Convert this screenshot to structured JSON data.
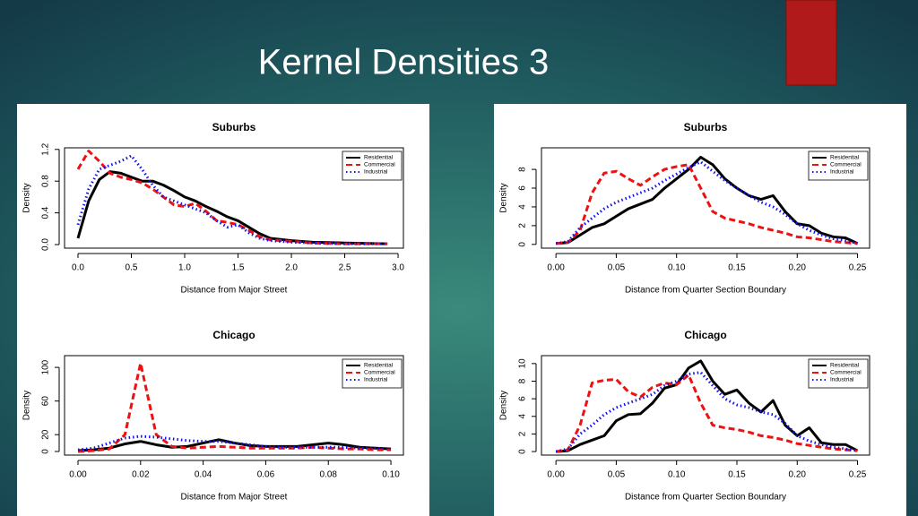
{
  "title": "Kernel Densities 3",
  "chart_data": [
    {
      "type": "line",
      "title": "Suburbs",
      "xlabel": "Distance from Major Street",
      "ylabel": "Density",
      "legend": "top-right",
      "x": [
        0,
        0.1,
        0.2,
        0.3,
        0.4,
        0.5,
        0.6,
        0.7,
        0.8,
        0.9,
        1.0,
        1.1,
        1.2,
        1.3,
        1.4,
        1.5,
        1.6,
        1.7,
        1.8,
        2.0,
        2.2,
        2.5,
        2.9
      ],
      "series": [
        {
          "name": "Residential",
          "color": "#000000",
          "dash": "solid",
          "values": [
            0.08,
            0.55,
            0.82,
            0.92,
            0.9,
            0.85,
            0.8,
            0.8,
            0.75,
            0.68,
            0.6,
            0.55,
            0.48,
            0.42,
            0.35,
            0.3,
            0.22,
            0.14,
            0.08,
            0.05,
            0.03,
            0.02,
            0.01
          ]
        },
        {
          "name": "Commercial",
          "color": "#ee1111",
          "dash": "dashed",
          "values": [
            0.95,
            1.18,
            1.05,
            0.9,
            0.85,
            0.82,
            0.78,
            0.7,
            0.6,
            0.5,
            0.48,
            0.52,
            0.42,
            0.3,
            0.28,
            0.25,
            0.18,
            0.1,
            0.06,
            0.04,
            0.02,
            0.01,
            0.01
          ]
        },
        {
          "name": "Industrial",
          "color": "#1111ee",
          "dash": "dotted",
          "values": [
            0.25,
            0.7,
            0.95,
            1.0,
            1.05,
            1.12,
            0.95,
            0.75,
            0.6,
            0.55,
            0.5,
            0.45,
            0.4,
            0.3,
            0.22,
            0.25,
            0.15,
            0.08,
            0.05,
            0.03,
            0.02,
            0.01,
            0.01
          ]
        }
      ],
      "xlim": [
        -0.126,
        3.05
      ],
      "ylim": [
        -0.045,
        1.22
      ],
      "xticks": [
        {
          "value": 0,
          "label": "0.0"
        },
        {
          "value": 0.5,
          "label": "0.5"
        },
        {
          "value": 1,
          "label": "1.0"
        },
        {
          "value": 1.5,
          "label": "1.5"
        },
        {
          "value": 2,
          "label": "2.0"
        },
        {
          "value": 2.5,
          "label": "2.5"
        },
        {
          "value": 3,
          "label": "3.0"
        }
      ],
      "yticks": [
        {
          "value": 0,
          "label": "0.0"
        },
        {
          "value": 0.4,
          "label": "0.4"
        },
        {
          "value": 0.8,
          "label": "0.8"
        },
        {
          "value": 1.2,
          "label": "1.2"
        }
      ]
    },
    {
      "type": "line",
      "title": "Chicago",
      "xlabel": "Distance from Major Street",
      "ylabel": "Density",
      "legend": "top-right",
      "x": [
        0,
        0.005,
        0.01,
        0.015,
        0.02,
        0.025,
        0.03,
        0.035,
        0.04,
        0.045,
        0.05,
        0.055,
        0.06,
        0.065,
        0.07,
        0.075,
        0.08,
        0.085,
        0.09,
        0.095,
        0.1
      ],
      "series": [
        {
          "name": "Residential",
          "color": "#000000",
          "dash": "solid",
          "values": [
            1,
            2,
            4,
            9,
            12,
            8,
            5,
            6,
            10,
            14,
            10,
            7,
            6,
            6,
            6,
            8,
            10,
            8,
            5,
            4,
            3
          ]
        },
        {
          "name": "Commercial",
          "color": "#ee1111",
          "dash": "dashed",
          "values": [
            0,
            1,
            3,
            20,
            105,
            20,
            6,
            4,
            5,
            6,
            5,
            4,
            4,
            4,
            4,
            5,
            4,
            3,
            3,
            2,
            2
          ]
        },
        {
          "name": "Industrial",
          "color": "#1111ee",
          "dash": "dotted",
          "values": [
            2,
            4,
            10,
            16,
            18,
            17,
            15,
            13,
            12,
            12,
            10,
            8,
            6,
            5,
            5,
            5,
            5,
            5,
            4,
            4,
            3
          ]
        }
      ],
      "xlim": [
        -0.0043,
        0.104
      ],
      "ylim": [
        -4.3,
        114
      ],
      "xticks": [
        {
          "value": 0,
          "label": "0.00"
        },
        {
          "value": 0.02,
          "label": "0.02"
        },
        {
          "value": 0.04,
          "label": "0.04"
        },
        {
          "value": 0.06,
          "label": "0.06"
        },
        {
          "value": 0.08,
          "label": "0.08"
        },
        {
          "value": 0.1,
          "label": "0.10"
        }
      ],
      "yticks": [
        0,
        20,
        60,
        100
      ]
    },
    {
      "type": "line",
      "title": "Suburbs",
      "xlabel": "Distance from Quarter Section Boundary",
      "ylabel": "Density",
      "legend": "top-right",
      "x": [
        0,
        0.01,
        0.02,
        0.03,
        0.04,
        0.05,
        0.06,
        0.07,
        0.08,
        0.09,
        0.1,
        0.11,
        0.12,
        0.13,
        0.14,
        0.15,
        0.16,
        0.17,
        0.18,
        0.19,
        0.2,
        0.21,
        0.22,
        0.23,
        0.24,
        0.25
      ],
      "series": [
        {
          "name": "Residential",
          "color": "#000000",
          "dash": "solid",
          "values": [
            0.1,
            0.2,
            1.0,
            1.8,
            2.2,
            3.0,
            3.8,
            4.3,
            4.8,
            6.0,
            7.0,
            8.0,
            9.3,
            8.5,
            7.0,
            6.0,
            5.2,
            4.8,
            5.2,
            3.5,
            2.2,
            2.0,
            1.2,
            0.8,
            0.7,
            0.1
          ]
        },
        {
          "name": "Commercial",
          "color": "#ee1111",
          "dash": "dashed",
          "values": [
            0.1,
            0.2,
            1.5,
            5.5,
            7.6,
            7.8,
            7.0,
            6.3,
            7.2,
            8.0,
            8.3,
            8.5,
            6.0,
            3.5,
            2.8,
            2.5,
            2.2,
            1.8,
            1.5,
            1.2,
            0.8,
            0.7,
            0.5,
            0.3,
            0.2,
            0.1
          ]
        },
        {
          "name": "Industrial",
          "color": "#1111ee",
          "dash": "dotted",
          "values": [
            0.1,
            0.3,
            1.8,
            2.8,
            3.8,
            4.5,
            5.0,
            5.5,
            6.0,
            6.8,
            7.5,
            8.2,
            8.8,
            7.8,
            6.8,
            6.0,
            5.2,
            4.5,
            4.0,
            3.2,
            2.2,
            1.5,
            1.0,
            0.6,
            0.4,
            0.1
          ]
        }
      ],
      "xlim": [
        -0.012,
        0.26
      ],
      "ylim": [
        -0.4,
        10.3
      ],
      "xticks": [
        {
          "value": 0,
          "label": "0.00"
        },
        {
          "value": 0.05,
          "label": "0.05"
        },
        {
          "value": 0.1,
          "label": "0.10"
        },
        {
          "value": 0.15,
          "label": "0.15"
        },
        {
          "value": 0.2,
          "label": "0.20"
        },
        {
          "value": 0.25,
          "label": "0.25"
        }
      ],
      "yticks": [
        0,
        2,
        4,
        6,
        8
      ]
    },
    {
      "type": "line",
      "title": "Chicago",
      "xlabel": "Distance from Quarter Section Boundary",
      "ylabel": "Density",
      "legend": "top-right",
      "x": [
        0,
        0.01,
        0.02,
        0.03,
        0.04,
        0.05,
        0.06,
        0.07,
        0.08,
        0.09,
        0.1,
        0.11,
        0.12,
        0.13,
        0.14,
        0.15,
        0.16,
        0.17,
        0.18,
        0.19,
        0.2,
        0.21,
        0.22,
        0.23,
        0.24,
        0.25
      ],
      "series": [
        {
          "name": "Residential",
          "color": "#000000",
          "dash": "solid",
          "values": [
            0,
            0.1,
            0.8,
            1.3,
            1.8,
            3.5,
            4.2,
            4.3,
            5.5,
            7.2,
            7.6,
            9.5,
            10.3,
            8.0,
            6.5,
            7.0,
            5.5,
            4.5,
            5.8,
            3.0,
            1.8,
            2.7,
            1.0,
            0.8,
            0.8,
            0.1
          ]
        },
        {
          "name": "Commercial",
          "color": "#ee1111",
          "dash": "dashed",
          "values": [
            0,
            0.2,
            3.0,
            7.8,
            8.1,
            8.2,
            6.8,
            6.2,
            7.3,
            7.8,
            7.6,
            8.7,
            5.5,
            3.0,
            2.7,
            2.5,
            2.2,
            1.8,
            1.6,
            1.3,
            0.9,
            0.7,
            0.5,
            0.3,
            0.2,
            0.1
          ]
        },
        {
          "name": "Industrial",
          "color": "#1111ee",
          "dash": "dotted",
          "values": [
            0,
            0.3,
            2.0,
            3.0,
            4.2,
            5.0,
            5.5,
            6.0,
            6.5,
            7.5,
            8.0,
            8.8,
            9.0,
            7.5,
            6.0,
            5.3,
            5.0,
            4.5,
            4.2,
            3.2,
            1.8,
            1.2,
            0.8,
            0.5,
            0.3,
            0.1
          ]
        }
      ],
      "xlim": [
        -0.012,
        0.26
      ],
      "ylim": [
        -0.4,
        10.9
      ],
      "xticks": [
        {
          "value": 0,
          "label": "0.00"
        },
        {
          "value": 0.05,
          "label": "0.05"
        },
        {
          "value": 0.1,
          "label": "0.10"
        },
        {
          "value": 0.15,
          "label": "0.15"
        },
        {
          "value": 0.2,
          "label": "0.20"
        },
        {
          "value": 0.25,
          "label": "0.25"
        }
      ],
      "yticks": [
        0,
        2,
        4,
        6,
        8,
        10
      ]
    }
  ]
}
